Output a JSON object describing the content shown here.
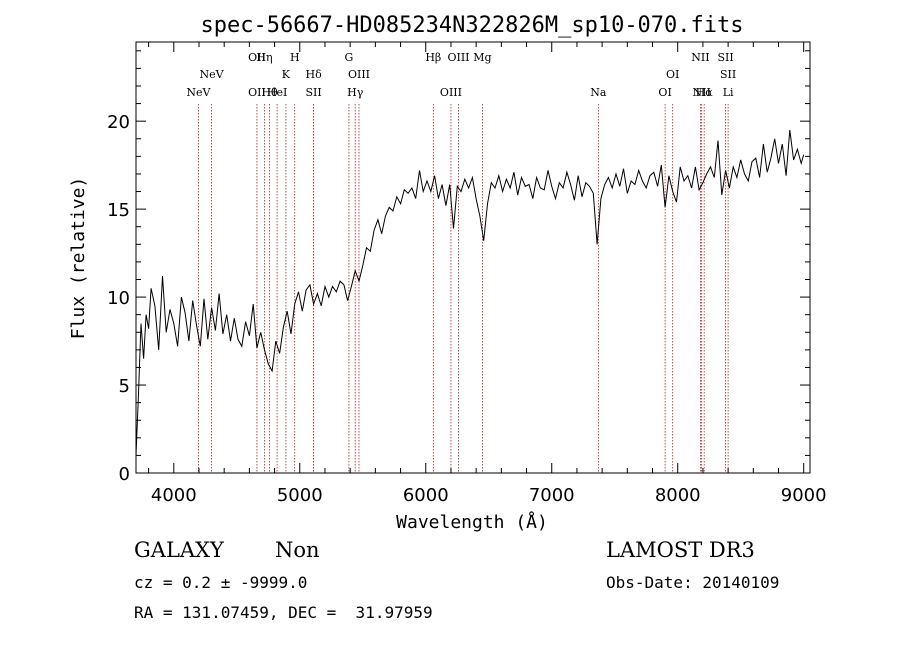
{
  "chart_data": {
    "type": "line",
    "title": "spec-56667-HD085234N322826M_sp10-070.fits",
    "xlabel": "Wavelength (Å)",
    "ylabel": "Flux (relative)",
    "xlim": [
      3700,
      9050
    ],
    "ylim": [
      0,
      24.5
    ],
    "x_ticks": [
      4000,
      5000,
      6000,
      7000,
      8000,
      9000
    ],
    "y_ticks": [
      0,
      5,
      10,
      15,
      20
    ],
    "line_color": "#000000",
    "marker_color": "#b22222",
    "series": [
      {
        "x": [
          3700,
          3720,
          3740,
          3760,
          3780,
          3800,
          3820,
          3850,
          3880,
          3910,
          3940,
          3970,
          4000,
          4030,
          4060,
          4090,
          4120,
          4150,
          4180,
          4210,
          4240,
          4270,
          4300,
          4330,
          4360,
          4390,
          4420,
          4450,
          4480,
          4510,
          4540,
          4570,
          4600,
          4630,
          4660,
          4690,
          4720,
          4750,
          4780,
          4810,
          4840,
          4870,
          4900,
          4930,
          4960,
          4990,
          5020,
          5050,
          5080,
          5110,
          5140,
          5170,
          5200,
          5230,
          5260,
          5290,
          5320,
          5350,
          5380,
          5410,
          5440,
          5470,
          5500,
          5530,
          5560,
          5590,
          5620,
          5650,
          5680,
          5710,
          5740,
          5770,
          5800,
          5830,
          5860,
          5890,
          5920,
          5950,
          5980,
          6010,
          6040,
          6070,
          6100,
          6130,
          6160,
          6190,
          6220,
          6250,
          6280,
          6310,
          6340,
          6370,
          6400,
          6430,
          6460,
          6490,
          6520,
          6550,
          6580,
          6610,
          6640,
          6670,
          6700,
          6730,
          6760,
          6790,
          6820,
          6850,
          6880,
          6910,
          6940,
          6970,
          7000,
          7030,
          7060,
          7090,
          7120,
          7150,
          7180,
          7210,
          7240,
          7270,
          7300,
          7330,
          7360,
          7390,
          7420,
          7450,
          7480,
          7510,
          7540,
          7570,
          7600,
          7630,
          7660,
          7690,
          7720,
          7750,
          7780,
          7810,
          7840,
          7870,
          7900,
          7930,
          7960,
          7990,
          8020,
          8050,
          8080,
          8110,
          8140,
          8170,
          8200,
          8230,
          8260,
          8290,
          8320,
          8350,
          8380,
          8410,
          8440,
          8470,
          8500,
          8530,
          8560,
          8590,
          8620,
          8650,
          8680,
          8710,
          8740,
          8770,
          8800,
          8830,
          8860,
          8890,
          8920,
          8950,
          8980,
          9000
        ],
        "y": [
          1.0,
          4.5,
          8.5,
          6.5,
          9.0,
          8.2,
          10.5,
          9.5,
          7.0,
          11.2,
          8.0,
          9.3,
          8.5,
          7.2,
          10.0,
          9.1,
          7.5,
          9.8,
          8.4,
          7.2,
          9.9,
          7.6,
          9.4,
          8.1,
          10.2,
          7.9,
          9.0,
          7.5,
          8.8,
          7.6,
          7.2,
          8.6,
          7.8,
          9.6,
          7.1,
          8.0,
          7.0,
          6.2,
          5.8,
          7.5,
          6.8,
          8.3,
          9.2,
          7.9,
          9.6,
          10.3,
          9.2,
          10.4,
          10.7,
          9.6,
          10.2,
          9.5,
          10.6,
          10.0,
          10.6,
          10.3,
          10.9,
          10.7,
          9.8,
          10.6,
          11.5,
          10.9,
          11.8,
          12.8,
          12.6,
          13.8,
          14.4,
          13.6,
          14.6,
          15.1,
          14.9,
          15.7,
          15.3,
          16.1,
          15.9,
          16.2,
          15.6,
          17.2,
          16.0,
          16.6,
          16.0,
          16.9,
          15.6,
          16.4,
          15.2,
          16.4,
          13.9,
          16.3,
          16.0,
          16.7,
          16.2,
          16.8,
          15.6,
          14.6,
          13.2,
          15.3,
          16.5,
          16.2,
          16.9,
          16.0,
          16.7,
          16.2,
          17.1,
          15.8,
          16.8,
          16.3,
          16.4,
          15.6,
          16.8,
          16.2,
          16.1,
          17.2,
          16.3,
          15.6,
          16.5,
          16.2,
          17.1,
          16.4,
          15.5,
          16.9,
          15.7,
          16.5,
          16.3,
          15.9,
          13.0,
          15.6,
          16.4,
          16.8,
          16.2,
          17.0,
          16.3,
          17.3,
          15.9,
          16.6,
          16.4,
          17.2,
          16.6,
          16.2,
          16.9,
          17.1,
          16.3,
          17.5,
          15.1,
          16.9,
          16.0,
          15.4,
          17.4,
          16.6,
          16.9,
          16.2,
          17.4,
          16.1,
          16.5,
          17.0,
          17.4,
          16.8,
          18.9,
          15.8,
          17.2,
          16.2,
          17.4,
          16.8,
          17.8,
          17.0,
          16.6,
          17.7,
          17.9,
          16.8,
          18.7,
          17.1,
          17.9,
          19.0,
          17.6,
          18.7,
          16.9,
          19.5,
          17.8,
          18.4,
          17.6,
          18.1
        ]
      }
    ],
    "line_markers": [
      {
        "top": "NeV",
        "bottom": "NeV",
        "x_top": 4300,
        "x_bottom": 4195
      },
      {
        "top": "OII",
        "bottom": "OII",
        "x_top": 4660,
        "x_bottom": 4660
      },
      {
        "top": "Hη",
        "bottom": "Hθ",
        "x_top": 4720,
        "x_bottom": 4760
      },
      {
        "top": "H",
        "bottom": "HeI",
        "x_top": 4960,
        "x_bottom": 4820
      },
      {
        "top": "K",
        "bottom": "SII",
        "x_top": 4890,
        "x_bottom": 5110
      },
      {
        "top": "Hδ",
        "bottom": "",
        "x_top": 5110,
        "x_bottom": 5110
      },
      {
        "top": "G",
        "bottom": "Hγ",
        "x_top": 5390,
        "x_bottom": 5440
      },
      {
        "top": "OIII",
        "bottom": "",
        "x_top": 5470,
        "x_bottom": 5470
      },
      {
        "top": "Hβ",
        "bottom": "OIII",
        "x_top": 6060,
        "x_bottom": 6200
      },
      {
        "top": "OIII",
        "bottom": "",
        "x_top": 6260,
        "x_bottom": 6260
      },
      {
        "top": "Mg",
        "bottom": "",
        "x_top": 6450,
        "x_bottom": 6450
      },
      {
        "top": "",
        "bottom": "Na",
        "x_top": 7370,
        "x_bottom": 7370
      },
      {
        "top": "OI",
        "bottom": "OI",
        "x_top": 7960,
        "x_bottom": 7900
      },
      {
        "top": "NII",
        "bottom": "Hα",
        "x_top": 8180,
        "x_bottom": 8210
      },
      {
        "top": "SII",
        "bottom": "NII",
        "x_top": 8380,
        "x_bottom": 8190
      },
      {
        "top": "SII",
        "bottom": "Li",
        "x_top": 8400,
        "x_bottom": 8400
      }
    ]
  },
  "info": {
    "object_class": "GALAXY",
    "subclass": "Non",
    "survey": "LAMOST DR3",
    "redshift": "cz = 0.2 ± -9999.0",
    "obs_date": "Obs-Date: 20140109",
    "coords": "RA = 131.07459, DEC =  31.97959"
  }
}
